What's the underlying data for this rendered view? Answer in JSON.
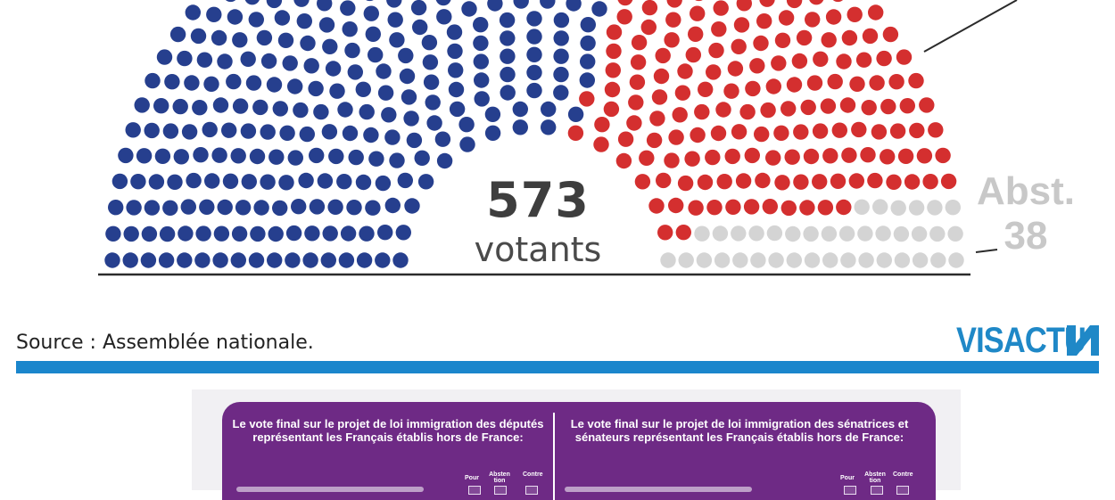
{
  "chart_data": {
    "type": "hemicycle",
    "title": "",
    "total_label": "votants",
    "total_value": 573,
    "series": [
      {
        "name": "",
        "value": 342,
        "color": "#263f8e"
      },
      {
        "name": "",
        "value": 193,
        "color": "#d42f2f"
      },
      {
        "name": "Abst.",
        "value": 38,
        "color": "#d4d4d4"
      }
    ],
    "rows": 17
  },
  "source": "Source : Assemblée nationale.",
  "brand": {
    "logo_text": "VISACTU",
    "accent_color": "#1a86cc"
  },
  "card": {
    "left_title": "Le vote final sur le projet de loi immigration des députés représentant les Français établis hors de France:",
    "right_title": "Le vote final sur le projet de loi immigration des sénatrices et sénateurs représentant les Français établis hors de France:",
    "col_pour": "Pour",
    "col_abstention": "Absten tion",
    "col_contre": "Contre",
    "panel_color": "#6e2a85"
  }
}
